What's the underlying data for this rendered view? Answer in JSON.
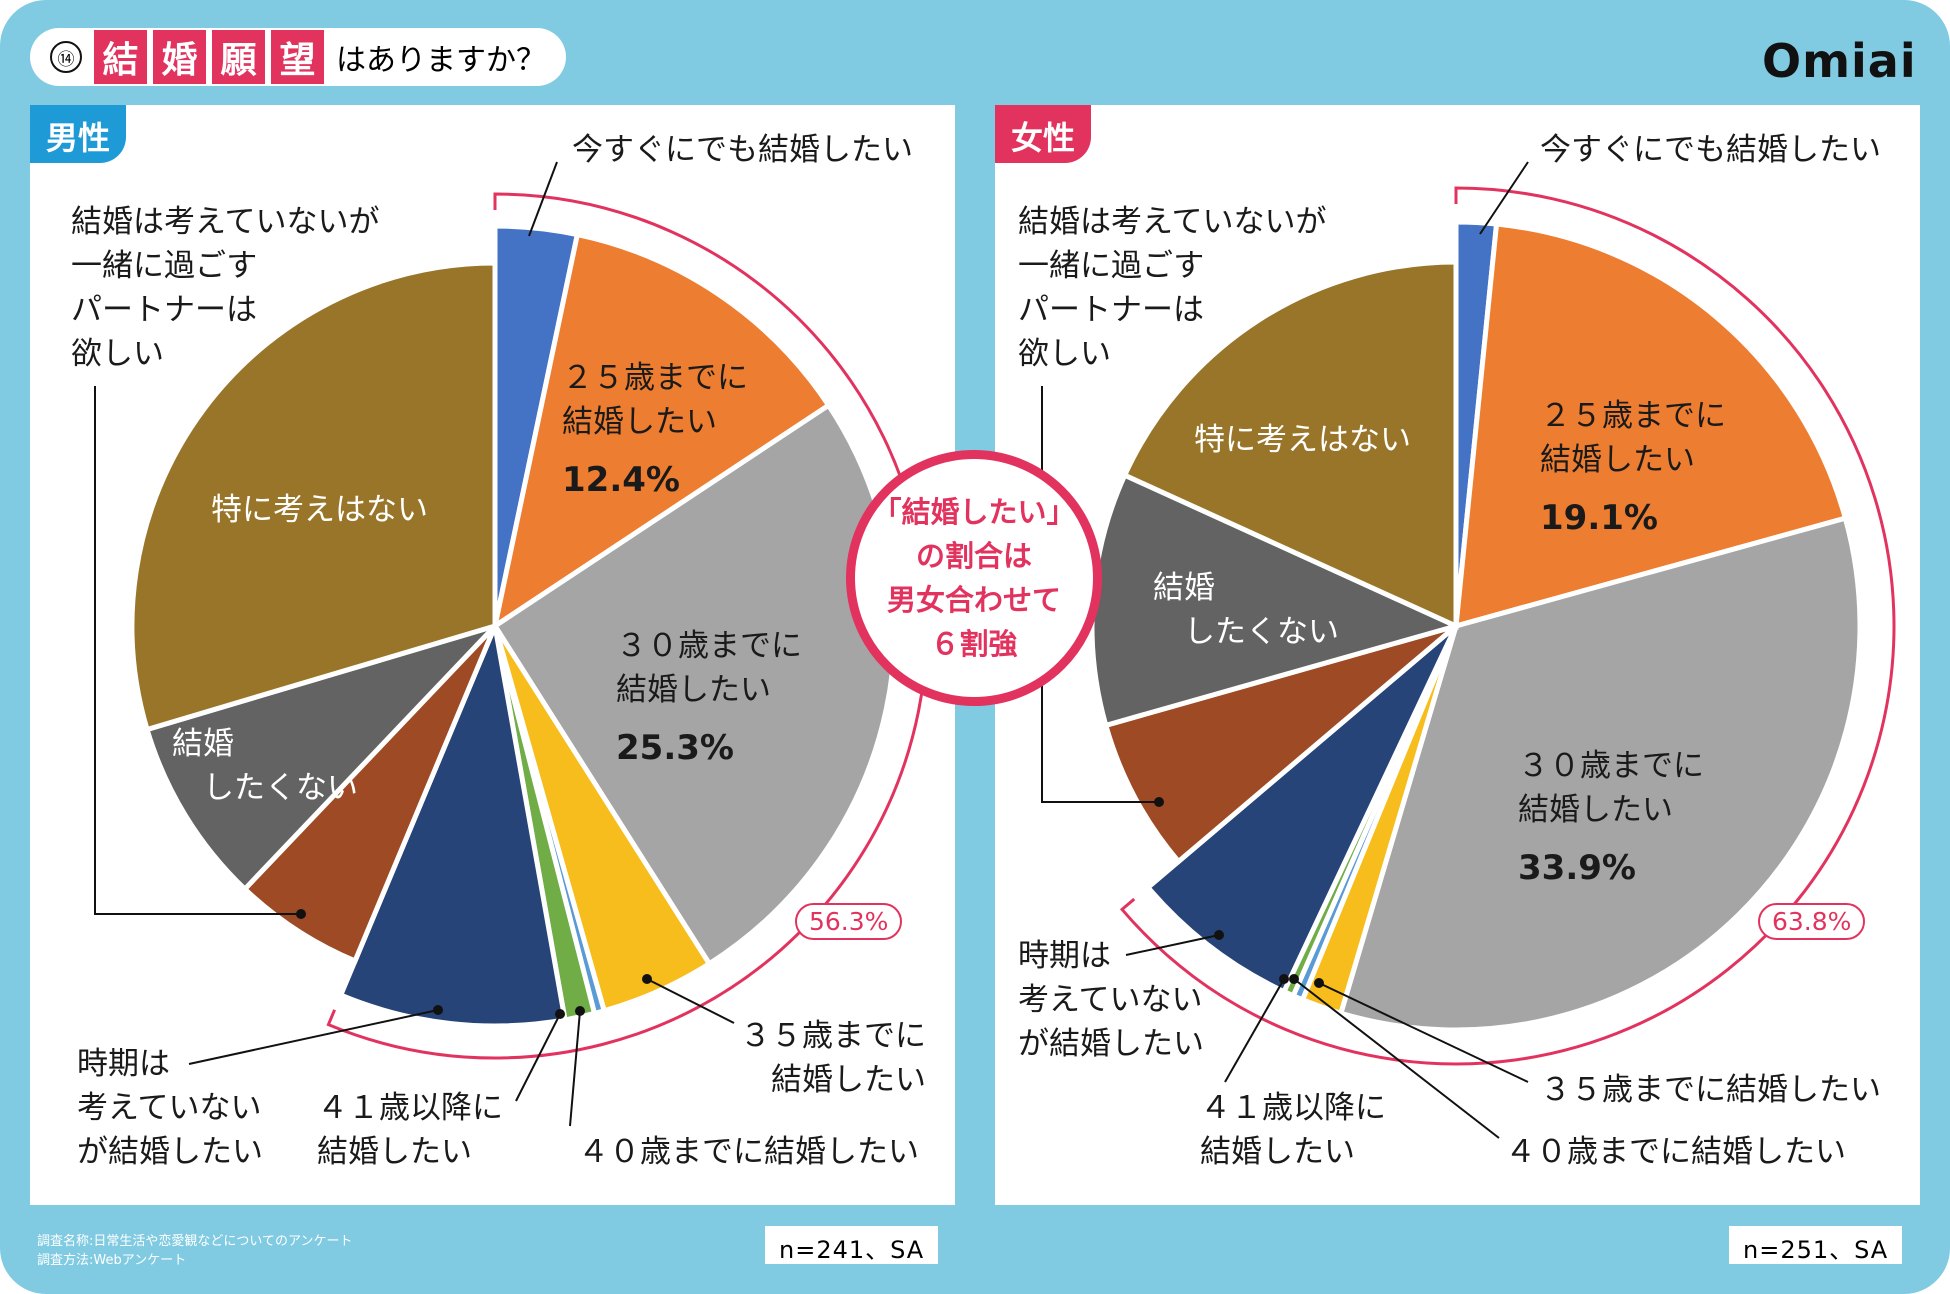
{
  "header": {
    "number": "⑭",
    "kanji": [
      "結",
      "婚",
      "願",
      "望"
    ],
    "question": "はありますか？",
    "logo": "Omiai"
  },
  "center_callout": {
    "lines": [
      "「結婚したい」",
      "の割合は",
      "男女合わせて",
      "６割強"
    ]
  },
  "footer": {
    "survey_name": "調査名称:日常生活や恋愛観などについてのアンケート",
    "survey_method": "調査方法:Webアンケート"
  },
  "colors": {
    "now": "#4472c4",
    "by25": "#ed7d31",
    "by30": "#a5a5a5",
    "by35": "#f7bd1d",
    "by40": "#5b9bd5",
    "after41": "#70ad47",
    "anytime": "#264478",
    "partner": "#9e4a25",
    "no": "#636363",
    "none": "#997529",
    "accent": "#e2335f",
    "male": "#1e9ad6",
    "bg": "#80cbe2"
  },
  "chart_data": [
    {
      "type": "pie",
      "title": "男性",
      "n_label": "n=241、SA",
      "bracket_label": "56.3%",
      "bracket_value": 56.3,
      "slices": [
        {
          "key": "now",
          "label": "今すぐにでも結婚したい",
          "value": 3.3,
          "want": true
        },
        {
          "key": "by25",
          "label": "２５歳までに\n結婚したい",
          "value": 12.4,
          "pct": "12.4%",
          "want": true
        },
        {
          "key": "by30",
          "label": "３０歳までに\n結婚したい",
          "value": 25.3,
          "pct": "25.3%",
          "want": true
        },
        {
          "key": "by35",
          "label": "３５歳までに\n結婚したい",
          "value": 4.6,
          "want": true
        },
        {
          "key": "by40",
          "label": "４０歳までに結婚したい",
          "value": 0.4,
          "want": true
        },
        {
          "key": "after41",
          "label": "４１歳以降に\n結婚したい",
          "value": 1.2,
          "want": true
        },
        {
          "key": "anytime",
          "label": "時期は\n考えていない\nが結婚したい",
          "value": 9.1,
          "want": true
        },
        {
          "key": "partner",
          "label": "結婚は考えていないが\n一緒に過ごす\nパートナーは\n欲しい",
          "value": 5.8,
          "want": false
        },
        {
          "key": "no",
          "label": "結婚\n　したくない",
          "value": 8.3,
          "want": false
        },
        {
          "key": "none",
          "label": "特に考えはない",
          "value": 29.6,
          "want": false
        }
      ]
    },
    {
      "type": "pie",
      "title": "女性",
      "n_label": "n=251、SA",
      "bracket_label": "63.8%",
      "bracket_value": 63.8,
      "slices": [
        {
          "key": "now",
          "label": "今すぐにでも結婚したい",
          "value": 1.6,
          "want": true
        },
        {
          "key": "by25",
          "label": "２５歳までに\n結婚したい",
          "value": 19.1,
          "pct": "19.1%",
          "want": true
        },
        {
          "key": "by30",
          "label": "３０歳までに\n結婚したい",
          "value": 33.9,
          "pct": "33.9%",
          "want": true
        },
        {
          "key": "by35",
          "label": "３５歳までに結婚したい",
          "value": 1.6,
          "want": true
        },
        {
          "key": "by40",
          "label": "４０歳までに結婚したい",
          "value": 0.4,
          "want": true
        },
        {
          "key": "after41",
          "label": "４１歳以降に\n結婚したい",
          "value": 0.4,
          "want": true
        },
        {
          "key": "anytime",
          "label": "時期は\n考えていない\nが結婚したい",
          "value": 6.8,
          "want": true
        },
        {
          "key": "partner",
          "label": "結婚は考えていないが\n一緒に過ごす\nパートナーは\n欲しい",
          "value": 6.8,
          "want": false
        },
        {
          "key": "no",
          "label": "結婚\n　したくない",
          "value": 11.2,
          "want": false
        },
        {
          "key": "none",
          "label": "特に考えはない",
          "value": 18.2,
          "want": false
        }
      ]
    }
  ]
}
